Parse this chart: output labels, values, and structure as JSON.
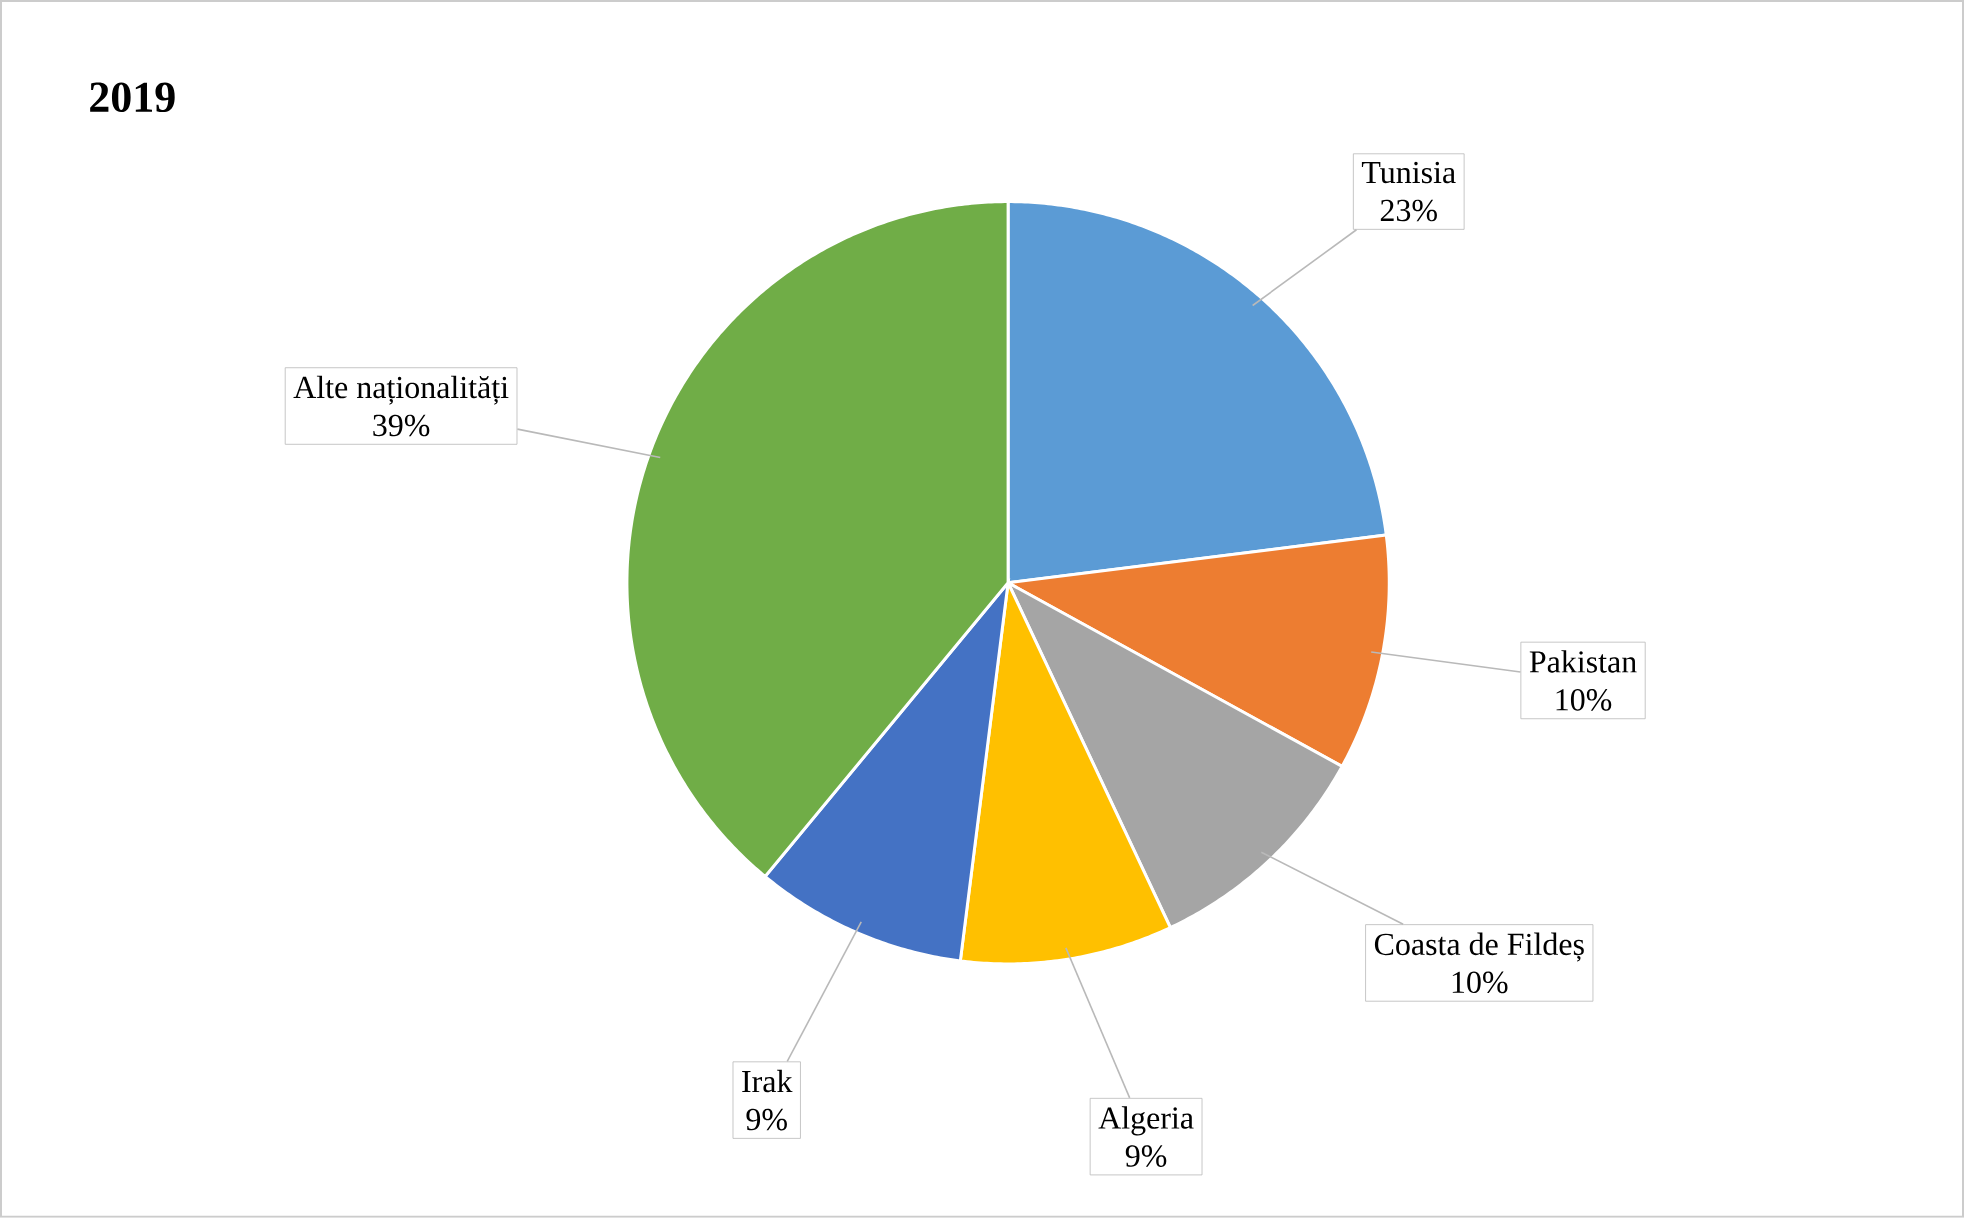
{
  "chart_data": {
    "type": "pie",
    "title": "2019",
    "categories": [
      "Tunisia",
      "Pakistan",
      "Coasta de Fildeș",
      "Algeria",
      "Irak",
      "Alte naționalități"
    ],
    "values": [
      23,
      10,
      10,
      9,
      9,
      39
    ],
    "value_labels": [
      "23%",
      "10%",
      "10%",
      "9%",
      "9%",
      "39%"
    ],
    "colors": [
      "#5b9bd5",
      "#ed7d31",
      "#a5a5a5",
      "#ffc000",
      "#4472c4",
      "#70ad47"
    ]
  }
}
